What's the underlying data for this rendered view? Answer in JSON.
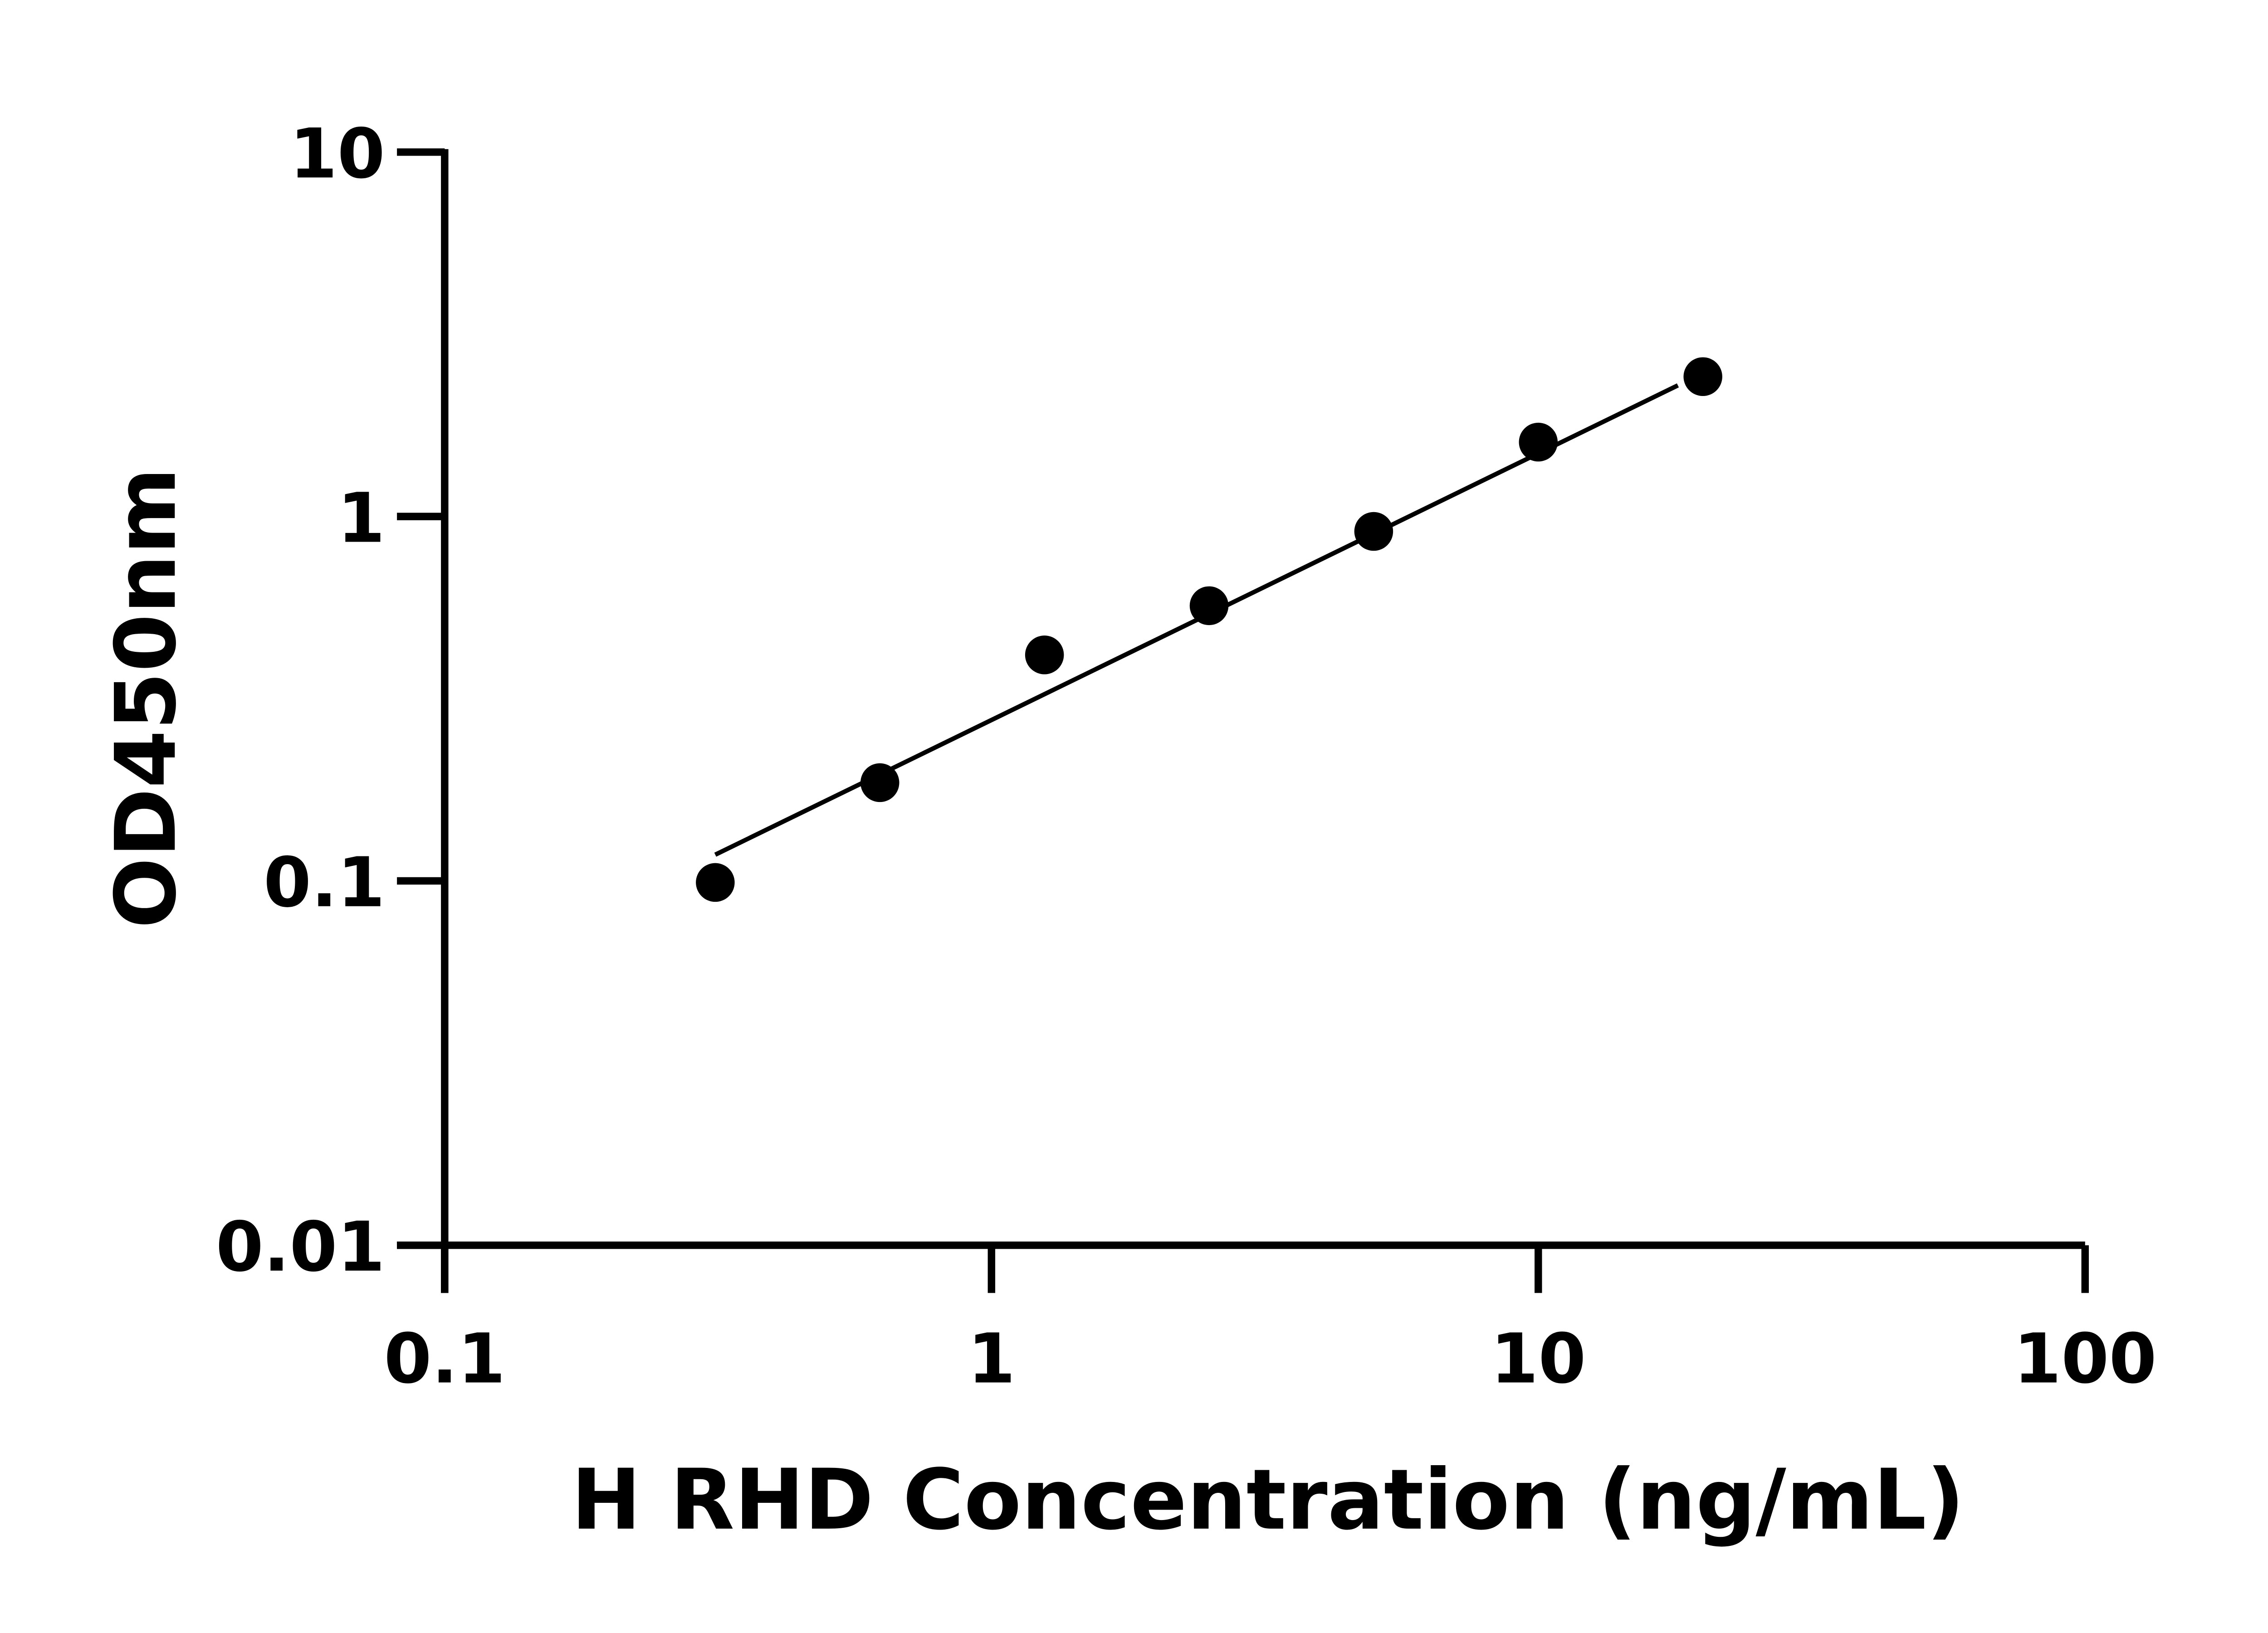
{
  "chart_data": {
    "type": "scatter",
    "title": "",
    "xlabel": "H RHD Concentration (ng/mL)",
    "ylabel": "OD450nm",
    "xscale": "log",
    "yscale": "log",
    "xlim": [
      0.1,
      100
    ],
    "ylim": [
      0.01,
      10
    ],
    "xticks": [
      "0.1",
      "1",
      "10",
      "100"
    ],
    "yticks": [
      "0.01",
      "0.1",
      "1",
      "10"
    ],
    "grid": false,
    "legend": "none",
    "series": [
      {
        "x": [
          0.3125,
          0.625,
          1.25,
          2.5,
          5,
          10,
          20
        ],
        "y": [
          0.099,
          0.186,
          0.417,
          0.569,
          0.91,
          1.6,
          2.42
        ],
        "marker": "circle",
        "color": "#000000"
      }
    ],
    "fit_line": {
      "x": [
        0.3125,
        18
      ],
      "y": [
        0.118,
        2.29
      ],
      "color": "#000000"
    }
  }
}
